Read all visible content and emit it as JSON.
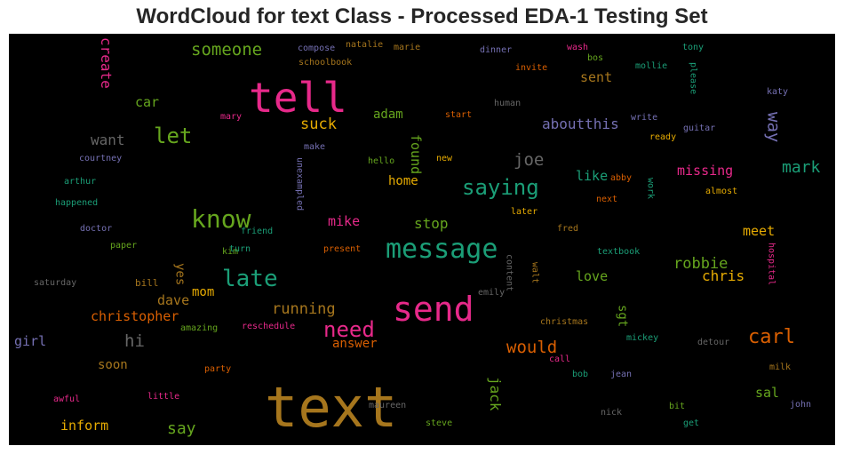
{
  "chart_data": {
    "type": "wordcloud",
    "title": "WordCloud for text Class - Processed EDA-1 Testing Set",
    "background": "#000000",
    "palette": [
      "#1b9e77",
      "#d95f02",
      "#7570b3",
      "#e7298a",
      "#66a61e",
      "#e6ab02",
      "#a6761d",
      "#666666"
    ],
    "words": [
      {
        "text": "text",
        "weight": 1.0,
        "color": "#a6761d"
      },
      {
        "text": "tell",
        "weight": 0.7,
        "color": "#e7298a"
      },
      {
        "text": "send",
        "weight": 0.62,
        "color": "#e7298a"
      },
      {
        "text": "message",
        "weight": 0.5,
        "color": "#1b9e77"
      },
      {
        "text": "know",
        "weight": 0.45,
        "color": "#66a61e"
      },
      {
        "text": "late",
        "weight": 0.4,
        "color": "#1b9e77"
      },
      {
        "text": "saying",
        "weight": 0.37,
        "color": "#1b9e77"
      },
      {
        "text": "need",
        "weight": 0.35,
        "color": "#e7298a"
      },
      {
        "text": "carl",
        "weight": 0.34,
        "color": "#d95f02"
      },
      {
        "text": "let",
        "weight": 0.33,
        "color": "#66a61e"
      },
      {
        "text": "someone",
        "weight": 0.28,
        "color": "#66a61e"
      },
      {
        "text": "joe",
        "weight": 0.28,
        "color": "#666666"
      },
      {
        "text": "mark",
        "weight": 0.27,
        "color": "#1b9e77"
      },
      {
        "text": "would",
        "weight": 0.27,
        "color": "#d95f02"
      },
      {
        "text": "robbie",
        "weight": 0.26,
        "color": "#66a61e"
      },
      {
        "text": "hi",
        "weight": 0.26,
        "color": "#666666"
      },
      {
        "text": "running",
        "weight": 0.26,
        "color": "#a6761d"
      },
      {
        "text": "say",
        "weight": 0.25,
        "color": "#66a61e"
      },
      {
        "text": "suck",
        "weight": 0.25,
        "color": "#e6ab02"
      },
      {
        "text": "way",
        "weight": 0.25,
        "color": "#7570b3"
      },
      {
        "text": "want",
        "weight": 0.23,
        "color": "#666666"
      },
      {
        "text": "aboutthis",
        "weight": 0.23,
        "color": "#7570b3"
      },
      {
        "text": "chris",
        "weight": 0.23,
        "color": "#e6ab02"
      },
      {
        "text": "christopher",
        "weight": 0.23,
        "color": "#d95f02"
      },
      {
        "text": "create",
        "weight": 0.22,
        "color": "#e7298a"
      },
      {
        "text": "missing",
        "weight": 0.22,
        "color": "#e7298a"
      },
      {
        "text": "stop",
        "weight": 0.22,
        "color": "#66a61e"
      },
      {
        "text": "jack",
        "weight": 0.22,
        "color": "#66a61e"
      },
      {
        "text": "found",
        "weight": 0.22,
        "color": "#66a61e"
      },
      {
        "text": "dave",
        "weight": 0.22,
        "color": "#a6761d"
      },
      {
        "text": "girl",
        "weight": 0.22,
        "color": "#7570b3"
      },
      {
        "text": "inform",
        "weight": 0.22,
        "color": "#e6ab02"
      },
      {
        "text": "meet",
        "weight": 0.21,
        "color": "#e6ab02"
      },
      {
        "text": "like",
        "weight": 0.21,
        "color": "#1b9e77"
      },
      {
        "text": "love",
        "weight": 0.21,
        "color": "#66a61e"
      },
      {
        "text": "car",
        "weight": 0.21,
        "color": "#66a61e"
      },
      {
        "text": "sent",
        "weight": 0.21,
        "color": "#a6761d"
      },
      {
        "text": "mike",
        "weight": 0.21,
        "color": "#e7298a"
      },
      {
        "text": "adam",
        "weight": 0.21,
        "color": "#66a61e"
      },
      {
        "text": "mom",
        "weight": 0.2,
        "color": "#e6ab02"
      },
      {
        "text": "soon",
        "weight": 0.2,
        "color": "#a6761d"
      },
      {
        "text": "sal",
        "weight": 0.2,
        "color": "#66a61e"
      },
      {
        "text": "home",
        "weight": 0.2,
        "color": "#e6ab02"
      },
      {
        "text": "answer",
        "weight": 0.2,
        "color": "#d95f02"
      },
      {
        "text": "yes",
        "weight": 0.19,
        "color": "#a6761d"
      },
      {
        "text": "sgt",
        "weight": 0.19,
        "color": "#66a61e"
      },
      {
        "text": "bill",
        "weight": 0.15,
        "color": "#a6761d"
      },
      {
        "text": "hospital",
        "weight": 0.15,
        "color": "#e7298a"
      },
      {
        "text": "please",
        "weight": 0.14,
        "color": "#1b9e77"
      },
      {
        "text": "tony",
        "weight": 0.14,
        "color": "#1b9e77"
      },
      {
        "text": "wash",
        "weight": 0.14,
        "color": "#e7298a"
      },
      {
        "text": "bos",
        "weight": 0.14,
        "color": "#66a61e"
      },
      {
        "text": "mollie",
        "weight": 0.14,
        "color": "#1b9e77"
      },
      {
        "text": "invite",
        "weight": 0.14,
        "color": "#d95f02"
      },
      {
        "text": "dinner",
        "weight": 0.14,
        "color": "#7570b3"
      },
      {
        "text": "natalie",
        "weight": 0.14,
        "color": "#a6761d"
      },
      {
        "text": "marie",
        "weight": 0.14,
        "color": "#a6761d"
      },
      {
        "text": "compose",
        "weight": 0.14,
        "color": "#7570b3"
      },
      {
        "text": "schoolbook",
        "weight": 0.14,
        "color": "#a6761d"
      },
      {
        "text": "human",
        "weight": 0.14,
        "color": "#666666"
      },
      {
        "text": "start",
        "weight": 0.14,
        "color": "#d95f02"
      },
      {
        "text": "katy",
        "weight": 0.14,
        "color": "#7570b3"
      },
      {
        "text": "write",
        "weight": 0.14,
        "color": "#7570b3"
      },
      {
        "text": "guitar",
        "weight": 0.14,
        "color": "#7570b3"
      },
      {
        "text": "ready",
        "weight": 0.14,
        "color": "#e6ab02"
      },
      {
        "text": "mary",
        "weight": 0.14,
        "color": "#e7298a"
      },
      {
        "text": "make",
        "weight": 0.14,
        "color": "#7570b3"
      },
      {
        "text": "courtney",
        "weight": 0.14,
        "color": "#7570b3"
      },
      {
        "text": "hello",
        "weight": 0.14,
        "color": "#66a61e"
      },
      {
        "text": "new",
        "weight": 0.14,
        "color": "#e6ab02"
      },
      {
        "text": "unexampled",
        "weight": 0.14,
        "color": "#7570b3"
      },
      {
        "text": "arthur",
        "weight": 0.14,
        "color": "#1b9e77"
      },
      {
        "text": "abby",
        "weight": 0.14,
        "color": "#d95f02"
      },
      {
        "text": "work",
        "weight": 0.14,
        "color": "#1b9e77"
      },
      {
        "text": "almost",
        "weight": 0.14,
        "color": "#e6ab02"
      },
      {
        "text": "next",
        "weight": 0.14,
        "color": "#d95f02"
      },
      {
        "text": "happened",
        "weight": 0.14,
        "color": "#1b9e77"
      },
      {
        "text": "later",
        "weight": 0.14,
        "color": "#e6ab02"
      },
      {
        "text": "doctor",
        "weight": 0.14,
        "color": "#7570b3"
      },
      {
        "text": "friend",
        "weight": 0.14,
        "color": "#1b9e77"
      },
      {
        "text": "fred",
        "weight": 0.14,
        "color": "#a6761d"
      },
      {
        "text": "paper",
        "weight": 0.14,
        "color": "#66a61e"
      },
      {
        "text": "kim",
        "weight": 0.14,
        "color": "#66a61e"
      },
      {
        "text": "turn",
        "weight": 0.14,
        "color": "#1b9e77"
      },
      {
        "text": "present",
        "weight": 0.14,
        "color": "#d95f02"
      },
      {
        "text": "textbook",
        "weight": 0.14,
        "color": "#1b9e77"
      },
      {
        "text": "saturday",
        "weight": 0.14,
        "color": "#666666"
      },
      {
        "text": "content",
        "weight": 0.14,
        "color": "#666666"
      },
      {
        "text": "walt",
        "weight": 0.14,
        "color": "#a6761d"
      },
      {
        "text": "emily",
        "weight": 0.14,
        "color": "#666666"
      },
      {
        "text": "reschedule",
        "weight": 0.14,
        "color": "#e7298a"
      },
      {
        "text": "amazing",
        "weight": 0.14,
        "color": "#66a61e"
      },
      {
        "text": "christmas",
        "weight": 0.14,
        "color": "#a6761d"
      },
      {
        "text": "mickey",
        "weight": 0.14,
        "color": "#1b9e77"
      },
      {
        "text": "detour",
        "weight": 0.14,
        "color": "#666666"
      },
      {
        "text": "call",
        "weight": 0.14,
        "color": "#e7298a"
      },
      {
        "text": "milk",
        "weight": 0.14,
        "color": "#a6761d"
      },
      {
        "text": "party",
        "weight": 0.14,
        "color": "#d95f02"
      },
      {
        "text": "bob",
        "weight": 0.14,
        "color": "#1b9e77"
      },
      {
        "text": "jean",
        "weight": 0.14,
        "color": "#7570b3"
      },
      {
        "text": "awful",
        "weight": 0.14,
        "color": "#e7298a"
      },
      {
        "text": "little",
        "weight": 0.14,
        "color": "#e7298a"
      },
      {
        "text": "maureen",
        "weight": 0.14,
        "color": "#666666"
      },
      {
        "text": "nick",
        "weight": 0.14,
        "color": "#666666"
      },
      {
        "text": "bit",
        "weight": 0.14,
        "color": "#66a61e"
      },
      {
        "text": "john",
        "weight": 0.14,
        "color": "#7570b3"
      },
      {
        "text": "steve",
        "weight": 0.14,
        "color": "#66a61e"
      },
      {
        "text": "get",
        "weight": 0.14,
        "color": "#1b9e77"
      }
    ]
  }
}
